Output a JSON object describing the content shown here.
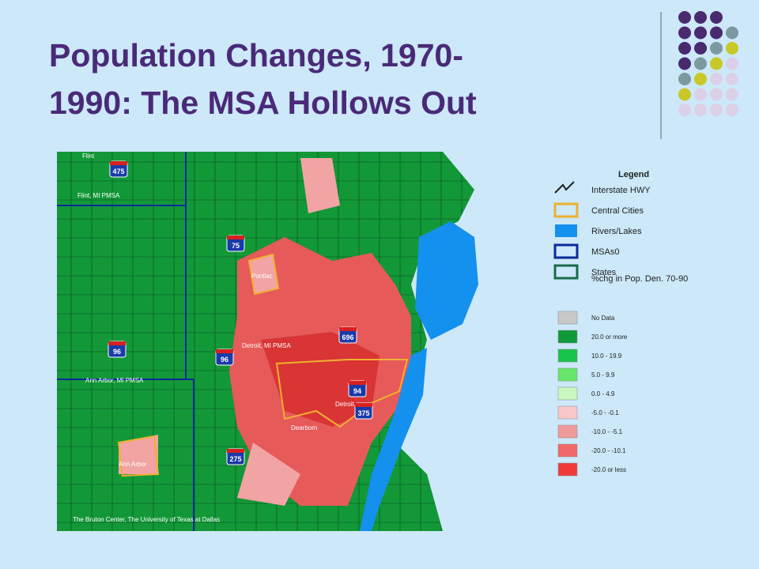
{
  "header": {
    "title_line1": "Population Changes, 1970-",
    "title_line2": "1990: The MSA Hollows Out"
  },
  "map": {
    "labels": {
      "flint": "Flint",
      "flint_pmsa": "Flint, MI PMSA",
      "pontiac": "Pontiac",
      "detroit_pmsa": "Detroit, MI PMSA",
      "ann_arbor_pmsa": "Ann Arbor, MI PMSA",
      "detroit": "Detroit",
      "dearborn": "Dearborn",
      "ann_arbor": "Ann Arbor"
    },
    "highways": {
      "i475": "475",
      "i75": "75",
      "i696": "696",
      "i96a": "96",
      "i96b": "96",
      "i94": "94",
      "i375": "375",
      "i275": "275"
    },
    "credit": "The Bruton Center,  The University of Texas at Dallas"
  },
  "legend": {
    "title": "Legend",
    "layers": [
      "Interstate HWY",
      "Central Cities",
      "Rivers/Lakes",
      "MSAs0",
      "States"
    ],
    "classes_title": "%chg in Pop. Den. 70-90",
    "classes": [
      "No Data",
      "20.0 or more",
      "10.0 - 19.9",
      "5.0 - 9.9",
      "0.0 - 4.9",
      "-5.0 - -0.1",
      "-10.0 - -5.1",
      "-20.0 - -10.1",
      "-20.0 or less"
    ]
  }
}
